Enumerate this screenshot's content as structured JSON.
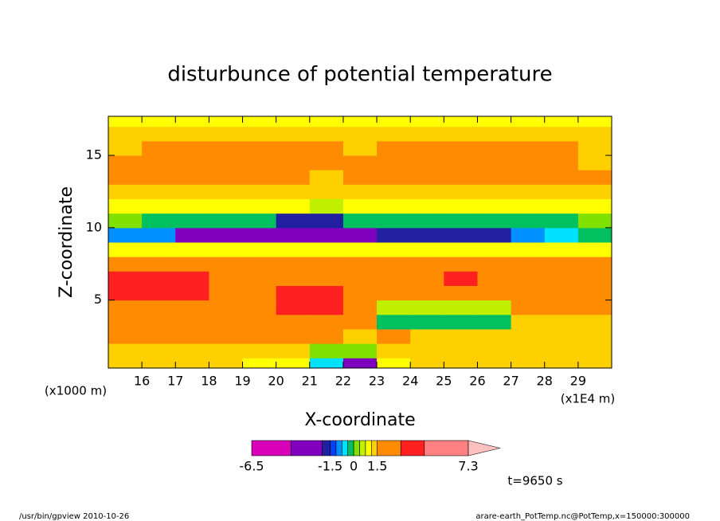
{
  "chart_data": {
    "type": "contour",
    "title": "disturbunce of potential temperature",
    "x_label": "X-coordinate",
    "y_label": "Z-coordinate",
    "x_unit": "(x1E4 m)",
    "y_unit": "(x1000 m)",
    "xlim": [
      15,
      30
    ],
    "xticks": [
      16,
      17,
      18,
      19,
      20,
      21,
      22,
      23,
      24,
      25,
      26,
      27,
      28,
      29
    ],
    "ylim": [
      0.3,
      17.7
    ],
    "yticks": [
      5,
      10,
      15
    ],
    "x_edges": [
      15,
      16,
      17,
      18,
      19,
      20,
      21,
      22,
      23,
      24,
      25,
      26,
      27,
      28,
      29,
      30
    ],
    "y_edges": [
      0.3,
      1,
      2,
      3,
      4,
      5,
      6,
      7,
      8,
      9,
      10,
      11,
      12,
      13,
      14,
      15,
      16,
      17,
      17.7
    ],
    "z": [
      [
        1.2,
        1.2,
        1.2,
        1.2,
        0.9,
        0.9,
        -0.5,
        -2,
        1,
        1.3,
        1.3,
        1.3,
        1.3,
        1.3,
        1.3
      ],
      [
        1.3,
        1.3,
        1.4,
        1.3,
        1.3,
        1.4,
        0.2,
        0.2,
        1.4,
        1.3,
        1.3,
        1.4,
        1.3,
        1.3,
        1.3
      ],
      [
        2,
        2,
        2,
        2,
        2,
        2,
        2.5,
        1.3,
        2,
        1.3,
        1.3,
        1.4,
        1.3,
        1.3,
        1.3
      ],
      [
        2.2,
        2.2,
        2.2,
        2.2,
        2.2,
        2.2,
        2.2,
        2.2,
        -0.2,
        -0.2,
        -0.2,
        -0.2,
        1.3,
        1.3,
        1.3
      ],
      [
        2,
        2,
        2,
        2,
        2,
        3.5,
        3.5,
        2,
        0.5,
        0.5,
        0.5,
        0.5,
        2,
        2,
        2
      ],
      [
        3.5,
        3.5,
        3.5,
        2,
        2,
        3.5,
        3.5,
        2,
        2,
        2,
        2,
        2,
        2,
        2,
        2
      ],
      [
        3.6,
        3.6,
        3.6,
        2.2,
        2.2,
        2.2,
        2.2,
        2.2,
        2.2,
        2.2,
        3.5,
        2.2,
        2.2,
        2.2,
        2.2
      ],
      [
        2,
        2,
        2,
        2,
        2,
        2,
        2,
        2,
        2,
        2,
        2,
        2,
        2,
        2,
        2
      ],
      [
        1,
        1,
        1,
        1,
        1,
        1,
        1,
        1,
        1,
        1,
        1,
        1,
        1,
        1,
        1
      ],
      [
        -1,
        -1,
        -3,
        -3,
        -3,
        -3,
        -2.2,
        -2.2,
        -1.8,
        -1.8,
        -1.8,
        -1.8,
        -0.9,
        -0.5,
        -0.2
      ],
      [
        0.3,
        -0.3,
        -0.3,
        -0.3,
        -0.3,
        -1.6,
        -1.6,
        -0.3,
        -0.3,
        -0.3,
        -0.3,
        -0.3,
        -0.3,
        -0.3,
        0.3
      ],
      [
        1,
        1,
        1,
        1,
        1,
        1,
        0.5,
        0.9,
        0.9,
        1,
        1,
        1,
        1,
        1,
        1
      ],
      [
        1.4,
        1.4,
        1.4,
        1.4,
        1.4,
        1.4,
        1.4,
        1.4,
        1.4,
        1.4,
        1.4,
        1.4,
        1.4,
        1.4,
        1.4
      ],
      [
        2.2,
        2.2,
        2.2,
        2.2,
        2.2,
        2.2,
        1.4,
        2.2,
        2.2,
        2.2,
        2.2,
        2.2,
        2.2,
        2.2,
        2.2
      ],
      [
        2.5,
        2.5,
        2.5,
        2.5,
        2.5,
        2.5,
        2.5,
        2.5,
        2.5,
        2.5,
        2.5,
        2.5,
        2.5,
        2.5,
        1.4
      ],
      [
        1.4,
        2.3,
        2.3,
        2.3,
        2.3,
        2.3,
        2.3,
        1.4,
        2.3,
        2.3,
        2.3,
        2.3,
        2.3,
        2.3,
        1.4
      ],
      [
        1.3,
        1.3,
        1.3,
        1.4,
        1.3,
        1.3,
        1.3,
        1.3,
        1.3,
        1.3,
        1.3,
        1.3,
        1.3,
        1.3,
        1.3
      ],
      [
        0.9,
        0.9,
        0.9,
        0.9,
        0.9,
        0.9,
        0.9,
        0.9,
        0.9,
        0.9,
        0.9,
        0.9,
        0.9,
        0.9,
        0.9
      ]
    ],
    "colorbar": {
      "levels": [
        -6.5,
        -4,
        -2,
        -1.5,
        -1.125,
        -0.75,
        -0.375,
        0,
        0.375,
        0.75,
        1.125,
        1.5,
        3,
        4.5,
        7.3
      ],
      "colors": [
        "#d800b8",
        "#8000c0",
        "#2020a0",
        "#0040ff",
        "#0090ff",
        "#00e0ff",
        "#00c060",
        "#80e000",
        "#c0f000",
        "#ffff00",
        "#ffd000",
        "#ff8c00",
        "#ff2020",
        "#ff8080"
      ],
      "extend_color": "#ffc0c0",
      "labels": [
        -6.5,
        -1.5,
        0,
        1.5,
        7.3
      ]
    },
    "time_label": "t=9650 s",
    "footer_left": "/usr/bin/gpview  2010-10-26",
    "footer_right": "arare-earth_PotTemp.nc@PotTemp,x=150000:300000"
  }
}
